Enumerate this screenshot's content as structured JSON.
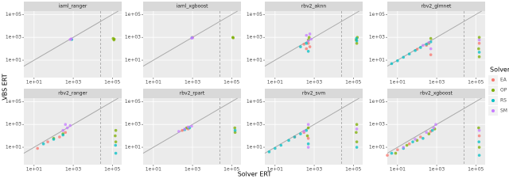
{
  "chart_data": {
    "type": "scatter",
    "x_label": "Solver ERT",
    "y_label": "VBS ERT",
    "legend_title": "Solver",
    "log_x": true,
    "log_y": true,
    "grid": true,
    "xlim": [
      3,
      300000
    ],
    "ylim": [
      0.3,
      200000
    ],
    "xticks": [
      {
        "value": 10,
        "label": "1e+01"
      },
      {
        "value": 1000,
        "label": "1e+03"
      },
      {
        "value": 100000,
        "label": "1e+05"
      }
    ],
    "yticks": [
      {
        "value": 10,
        "label": "1e+01"
      },
      {
        "value": 1000,
        "label": "1e+03"
      },
      {
        "value": 100000,
        "label": "1e+05"
      }
    ],
    "vline": 25000,
    "series": [
      {
        "name": "EA",
        "color": "#F8766D"
      },
      {
        "name": "OP",
        "color": "#7CAE00"
      },
      {
        "name": "RS",
        "color": "#00BFC4"
      },
      {
        "name": "SM",
        "color": "#C77CFF"
      }
    ],
    "facets": [
      {
        "title": "iaml_ranger",
        "data": [
          {
            "x": [
              800
            ],
            "y": [
              700
            ]
          },
          {
            "x": [
              120000,
              110000,
              125000
            ],
            "y": [
              600,
              800,
              700
            ]
          },
          {
            "x": [
              850
            ],
            "y": [
              650
            ]
          },
          {
            "x": [
              800,
              700
            ],
            "y": [
              750,
              650
            ]
          }
        ]
      },
      {
        "title": "iaml_xgboost",
        "data": [
          {
            "x": [
              1000
            ],
            "y": [
              1000
            ]
          },
          {
            "x": [
              120000,
              115000
            ],
            "y": [
              900,
              1000
            ]
          },
          {
            "x": [
              950
            ],
            "y": [
              950
            ]
          },
          {
            "x": [
              1000,
              900
            ],
            "y": [
              900,
              850
            ]
          }
        ]
      },
      {
        "title": "rbv2_aknn",
        "data": [
          {
            "x": [
              300,
              500,
              400,
              600
            ],
            "y": [
              250,
              300,
              100,
              150
            ]
          },
          {
            "x": [
              500,
              550,
              150000,
              140000,
              160000
            ],
            "y": [
              600,
              1000,
              300,
              600,
              1000
            ]
          },
          {
            "x": [
              200,
              400,
              500,
              150000,
              145000
            ],
            "y": [
              150,
              300,
              60,
              500,
              800
            ]
          },
          {
            "x": [
              500,
              700,
              400,
              600
            ],
            "y": [
              500,
              700,
              1500,
              2000
            ]
          }
        ]
      },
      {
        "title": "rbv2_glmnet",
        "data": [
          {
            "x": [
              100,
              300,
              500,
              150000
            ],
            "y": [
              90,
              200,
              30,
              300
            ]
          },
          {
            "x": [
              400,
              500,
              150000,
              140000,
              150000
            ],
            "y": [
              300,
              800,
              20,
              100,
              1000
            ]
          },
          {
            "x": [
              5,
              10,
              20,
              40,
              80,
              150,
              300,
              500,
              150000
            ],
            "y": [
              5,
              9,
              18,
              35,
              70,
              130,
              250,
              400,
              50
            ]
          },
          {
            "x": [
              200,
              400,
              500,
              150000
            ],
            "y": [
              200,
              350,
              100,
              600
            ]
          }
        ]
      },
      {
        "title": "rbv2_ranger",
        "data": [
          {
            "x": [
              15,
              50,
              200,
              400
            ],
            "y": [
              8,
              30,
              80,
              200
            ]
          },
          {
            "x": [
              100,
              300,
              150000,
              140000,
              150000
            ],
            "y": [
              60,
              150,
              30,
              100,
              300
            ]
          },
          {
            "x": [
              30,
              100,
              300,
              150000,
              145000
            ],
            "y": [
              20,
              50,
              120,
              3,
              15
            ]
          },
          {
            "x": [
              300,
              500,
              700,
              400
            ],
            "y": [
              300,
              500,
              800,
              1000
            ]
          }
        ]
      },
      {
        "title": "rbv2_rpart",
        "data": [
          {
            "x": [
              300,
              600
            ],
            "y": [
              300,
              400
            ]
          },
          {
            "x": [
              500,
              150000,
              145000
            ],
            "y": [
              500,
              200,
              500
            ]
          },
          {
            "x": [
              400,
              700,
              150000
            ],
            "y": [
              350,
              500,
              300
            ]
          },
          {
            "x": [
              200,
              400,
              600,
              900
            ],
            "y": [
              250,
              400,
              600,
              700
            ]
          }
        ]
      },
      {
        "title": "rbv2_svm",
        "data": [
          {
            "x": [
              100,
              300,
              500
            ],
            "y": [
              80,
              200,
              60
            ]
          },
          {
            "x": [
              500,
              450,
              150000,
              140000,
              150000
            ],
            "y": [
              500,
              100,
              30,
              200,
              1000
            ]
          },
          {
            "x": [
              5,
              10,
              20,
              50,
              100,
              200,
              400,
              500,
              150000
            ],
            "y": [
              4,
              8,
              15,
              40,
              80,
              150,
              300,
              20,
              10
            ]
          },
          {
            "x": [
              300,
              500,
              500,
              150000
            ],
            "y": [
              250,
              1000,
              10,
              400
            ]
          }
        ]
      },
      {
        "title": "rbv2_xgboost",
        "data": [
          {
            "x": [
              3,
              10,
              40,
              150,
              500,
              150000
            ],
            "y": [
              2,
              6,
              20,
              80,
              250,
              100
            ]
          },
          {
            "x": [
              8,
              30,
              100,
              400,
              800,
              150000,
              140000
            ],
            "y": [
              3,
              15,
              40,
              150,
              400,
              10,
              500
            ]
          },
          {
            "x": [
              5,
              20,
              60,
              200,
              600,
              150000,
              145000
            ],
            "y": [
              3,
              8,
              30,
              60,
              300,
              2,
              30
            ]
          },
          {
            "x": [
              20,
              80,
              300,
              700,
              900,
              150000
            ],
            "y": [
              10,
              50,
              200,
              500,
              1000,
              300
            ]
          }
        ]
      }
    ]
  }
}
